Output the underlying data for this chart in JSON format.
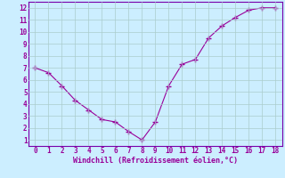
{
  "x": [
    0,
    1,
    2,
    3,
    4,
    5,
    6,
    7,
    8,
    9,
    10,
    11,
    12,
    13,
    14,
    15,
    16,
    17,
    18
  ],
  "y": [
    7.0,
    6.6,
    5.5,
    4.3,
    3.5,
    2.7,
    2.5,
    1.7,
    1.0,
    2.5,
    5.5,
    7.3,
    7.7,
    9.5,
    10.5,
    11.2,
    11.8,
    12.0,
    12.0
  ],
  "line_color": "#990099",
  "marker": "+",
  "marker_size": 4,
  "bg_color": "#cceeff",
  "grid_color": "#aacccc",
  "xlabel": "Windchill (Refroidissement éolien,°C)",
  "xlabel_color": "#990099",
  "tick_color": "#990099",
  "xlim": [
    -0.5,
    18.5
  ],
  "ylim": [
    0.5,
    12.5
  ],
  "yticks": [
    1,
    2,
    3,
    4,
    5,
    6,
    7,
    8,
    9,
    10,
    11,
    12
  ],
  "xticks": [
    0,
    1,
    2,
    3,
    4,
    5,
    6,
    7,
    8,
    9,
    10,
    11,
    12,
    13,
    14,
    15,
    16,
    17,
    18
  ],
  "spine_color": "#7700aa"
}
